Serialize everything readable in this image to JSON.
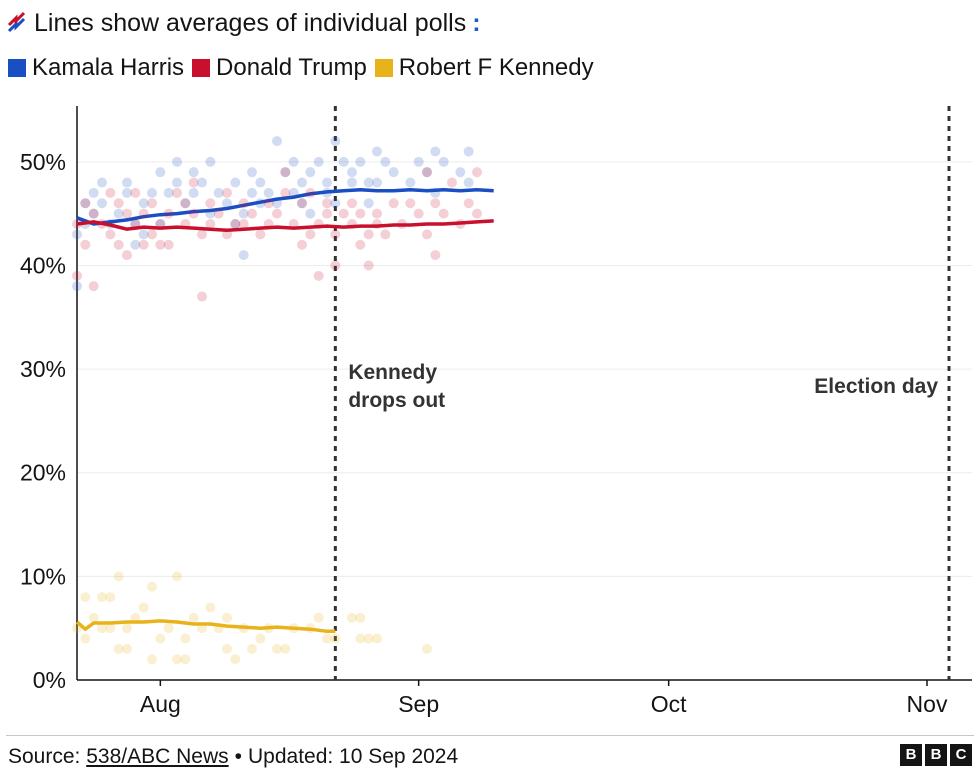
{
  "header": {
    "title": "Lines show averages of individual polls",
    "colon": ":"
  },
  "legend": [
    {
      "name": "Kamala Harris",
      "color": "#1a4fc4"
    },
    {
      "name": "Donald Trump",
      "color": "#c8102e"
    },
    {
      "name": "Robert F Kennedy",
      "color": "#e8b21b"
    }
  ],
  "chart_data": {
    "type": "scatter",
    "title": "Lines show averages of individual polls",
    "x_axis": {
      "unit": "day offset from 22 Jul 2024",
      "range": [
        0,
        105
      ],
      "ticks": [
        {
          "label": "Aug",
          "x": 10
        },
        {
          "label": "Sep",
          "x": 41
        },
        {
          "label": "Oct",
          "x": 71
        },
        {
          "label": "Nov",
          "x": 102
        }
      ]
    },
    "y_axis": {
      "range": [
        0,
        55
      ],
      "ticks": [
        0,
        10,
        20,
        30,
        40,
        50
      ],
      "tick_labels": [
        "0%",
        "10%",
        "20%",
        "30%",
        "40%",
        "50%"
      ]
    },
    "annotations": [
      {
        "x": 31,
        "label": "Kennedy drops out"
      },
      {
        "x": 105,
        "label": "Election day"
      }
    ],
    "series": [
      {
        "name": "Kamala Harris",
        "color": "#1a4fc4",
        "average": [
          [
            0,
            44.6
          ],
          [
            2,
            44.0
          ],
          [
            4,
            44.2
          ],
          [
            6,
            44.4
          ],
          [
            8,
            44.7
          ],
          [
            10,
            44.9
          ],
          [
            12,
            45.0
          ],
          [
            14,
            45.2
          ],
          [
            16,
            45.3
          ],
          [
            18,
            45.5
          ],
          [
            20,
            45.8
          ],
          [
            22,
            46.1
          ],
          [
            24,
            46.4
          ],
          [
            26,
            46.6
          ],
          [
            28,
            46.9
          ],
          [
            30,
            47.1
          ],
          [
            32,
            47.2
          ],
          [
            34,
            47.3
          ],
          [
            36,
            47.2
          ],
          [
            38,
            47.2
          ],
          [
            40,
            47.3
          ],
          [
            42,
            47.2
          ],
          [
            44,
            47.3
          ],
          [
            46,
            47.2
          ],
          [
            48,
            47.3
          ],
          [
            50,
            47.2
          ]
        ],
        "polls": [
          [
            0,
            43
          ],
          [
            0,
            38
          ],
          [
            1,
            46
          ],
          [
            1,
            44
          ],
          [
            2,
            47
          ],
          [
            2,
            45
          ],
          [
            3,
            48
          ],
          [
            3,
            46
          ],
          [
            4,
            44
          ],
          [
            5,
            45
          ],
          [
            6,
            47
          ],
          [
            6,
            48
          ],
          [
            7,
            42
          ],
          [
            7,
            44
          ],
          [
            8,
            46
          ],
          [
            8,
            43
          ],
          [
            9,
            47
          ],
          [
            10,
            49
          ],
          [
            10,
            44
          ],
          [
            11,
            47
          ],
          [
            12,
            48
          ],
          [
            12,
            50
          ],
          [
            13,
            46
          ],
          [
            14,
            47
          ],
          [
            14,
            49
          ],
          [
            15,
            48
          ],
          [
            16,
            45
          ],
          [
            16,
            50
          ],
          [
            17,
            47
          ],
          [
            18,
            46
          ],
          [
            19,
            48
          ],
          [
            19,
            44
          ],
          [
            20,
            41
          ],
          [
            20,
            45
          ],
          [
            21,
            47
          ],
          [
            21,
            49
          ],
          [
            22,
            46
          ],
          [
            22,
            48
          ],
          [
            23,
            47
          ],
          [
            24,
            52
          ],
          [
            24,
            46
          ],
          [
            25,
            49
          ],
          [
            26,
            47
          ],
          [
            26,
            50
          ],
          [
            27,
            46
          ],
          [
            27,
            48
          ],
          [
            28,
            49
          ],
          [
            28,
            45
          ],
          [
            29,
            50
          ],
          [
            30,
            48
          ],
          [
            30,
            47
          ],
          [
            31,
            52
          ],
          [
            31,
            46
          ],
          [
            32,
            50
          ],
          [
            33,
            48
          ],
          [
            33,
            49
          ],
          [
            34,
            50
          ],
          [
            35,
            46
          ],
          [
            35,
            48
          ],
          [
            36,
            51
          ],
          [
            36,
            48
          ],
          [
            37,
            50
          ],
          [
            38,
            49
          ],
          [
            40,
            48
          ],
          [
            41,
            50
          ],
          [
            42,
            49
          ],
          [
            43,
            51
          ],
          [
            43,
            47
          ],
          [
            44,
            50
          ],
          [
            46,
            49
          ],
          [
            47,
            51
          ],
          [
            47,
            48
          ]
        ]
      },
      {
        "name": "Donald Trump",
        "color": "#c8102e",
        "average": [
          [
            0,
            44.0
          ],
          [
            2,
            44.2
          ],
          [
            4,
            43.9
          ],
          [
            6,
            43.5
          ],
          [
            8,
            43.7
          ],
          [
            10,
            43.6
          ],
          [
            12,
            43.7
          ],
          [
            14,
            43.6
          ],
          [
            16,
            43.5
          ],
          [
            18,
            43.4
          ],
          [
            20,
            43.5
          ],
          [
            22,
            43.6
          ],
          [
            24,
            43.7
          ],
          [
            26,
            43.6
          ],
          [
            28,
            43.7
          ],
          [
            30,
            43.8
          ],
          [
            32,
            43.7
          ],
          [
            34,
            43.8
          ],
          [
            36,
            43.8
          ],
          [
            38,
            43.9
          ],
          [
            40,
            43.9
          ],
          [
            42,
            44.0
          ],
          [
            44,
            44.0
          ],
          [
            46,
            44.1
          ],
          [
            48,
            44.2
          ],
          [
            50,
            44.3
          ]
        ],
        "polls": [
          [
            0,
            39
          ],
          [
            0,
            44
          ],
          [
            1,
            42
          ],
          [
            1,
            46
          ],
          [
            2,
            38
          ],
          [
            2,
            45
          ],
          [
            3,
            44
          ],
          [
            4,
            43
          ],
          [
            4,
            47
          ],
          [
            5,
            42
          ],
          [
            5,
            46
          ],
          [
            6,
            41
          ],
          [
            6,
            45
          ],
          [
            7,
            44
          ],
          [
            7,
            47
          ],
          [
            8,
            42
          ],
          [
            8,
            45
          ],
          [
            9,
            43
          ],
          [
            9,
            46
          ],
          [
            10,
            42
          ],
          [
            10,
            44
          ],
          [
            11,
            45
          ],
          [
            11,
            42
          ],
          [
            12,
            47
          ],
          [
            13,
            44
          ],
          [
            13,
            46
          ],
          [
            14,
            48
          ],
          [
            14,
            45
          ],
          [
            15,
            37
          ],
          [
            15,
            43
          ],
          [
            16,
            44
          ],
          [
            16,
            46
          ],
          [
            17,
            45
          ],
          [
            18,
            43
          ],
          [
            18,
            47
          ],
          [
            19,
            44
          ],
          [
            20,
            44
          ],
          [
            20,
            46
          ],
          [
            21,
            45
          ],
          [
            22,
            43
          ],
          [
            23,
            46
          ],
          [
            23,
            44
          ],
          [
            24,
            45
          ],
          [
            25,
            47
          ],
          [
            25,
            49
          ],
          [
            26,
            44
          ],
          [
            27,
            46
          ],
          [
            27,
            42
          ],
          [
            28,
            43
          ],
          [
            28,
            47
          ],
          [
            29,
            39
          ],
          [
            29,
            44
          ],
          [
            30,
            46
          ],
          [
            30,
            45
          ],
          [
            31,
            40
          ],
          [
            31,
            43
          ],
          [
            32,
            45
          ],
          [
            33,
            44
          ],
          [
            33,
            46
          ],
          [
            34,
            42
          ],
          [
            34,
            45
          ],
          [
            35,
            43
          ],
          [
            35,
            40
          ],
          [
            36,
            45
          ],
          [
            36,
            44
          ],
          [
            37,
            43
          ],
          [
            38,
            46
          ],
          [
            39,
            44
          ],
          [
            40,
            46
          ],
          [
            41,
            45
          ],
          [
            42,
            43
          ],
          [
            42,
            49
          ],
          [
            43,
            41
          ],
          [
            43,
            46
          ],
          [
            44,
            45
          ],
          [
            45,
            48
          ],
          [
            46,
            44
          ],
          [
            47,
            46
          ],
          [
            48,
            49
          ],
          [
            48,
            45
          ]
        ]
      },
      {
        "name": "Robert F Kennedy",
        "color": "#e8b21b",
        "average": [
          [
            0,
            5.6
          ],
          [
            1,
            4.9
          ],
          [
            2,
            5.5
          ],
          [
            4,
            5.5
          ],
          [
            6,
            5.6
          ],
          [
            8,
            5.6
          ],
          [
            10,
            5.7
          ],
          [
            12,
            5.6
          ],
          [
            14,
            5.4
          ],
          [
            16,
            5.4
          ],
          [
            18,
            5.2
          ],
          [
            20,
            5.1
          ],
          [
            22,
            5.0
          ],
          [
            24,
            5.1
          ],
          [
            26,
            5.0
          ],
          [
            28,
            4.9
          ],
          [
            30,
            4.7
          ],
          [
            31,
            4.7
          ]
        ],
        "polls": [
          [
            0,
            5
          ],
          [
            1,
            4
          ],
          [
            1,
            8
          ],
          [
            2,
            6
          ],
          [
            3,
            5
          ],
          [
            3,
            8
          ],
          [
            4,
            8
          ],
          [
            4,
            5
          ],
          [
            5,
            3
          ],
          [
            5,
            10
          ],
          [
            6,
            5
          ],
          [
            6,
            3
          ],
          [
            7,
            6
          ],
          [
            8,
            7
          ],
          [
            9,
            2
          ],
          [
            9,
            9
          ],
          [
            10,
            4
          ],
          [
            11,
            5
          ],
          [
            12,
            2
          ],
          [
            12,
            10
          ],
          [
            13,
            2
          ],
          [
            13,
            4
          ],
          [
            14,
            6
          ],
          [
            15,
            5
          ],
          [
            16,
            7
          ],
          [
            17,
            5
          ],
          [
            18,
            6
          ],
          [
            18,
            3
          ],
          [
            19,
            2
          ],
          [
            20,
            5
          ],
          [
            21,
            3
          ],
          [
            22,
            4
          ],
          [
            23,
            5
          ],
          [
            24,
            3
          ],
          [
            25,
            3
          ],
          [
            26,
            5
          ],
          [
            28,
            5
          ],
          [
            29,
            6
          ],
          [
            30,
            4
          ],
          [
            31,
            4
          ],
          [
            33,
            6
          ],
          [
            34,
            4
          ],
          [
            34,
            6
          ],
          [
            35,
            4
          ],
          [
            36,
            4
          ],
          [
            42,
            3
          ]
        ]
      }
    ]
  },
  "footer": {
    "source_label": "Source:",
    "source_link": "538/ABC News",
    "separator": "•",
    "updated": "Updated: 10 Sep 2024"
  },
  "logo": {
    "letters": [
      "B",
      "B",
      "C"
    ]
  }
}
